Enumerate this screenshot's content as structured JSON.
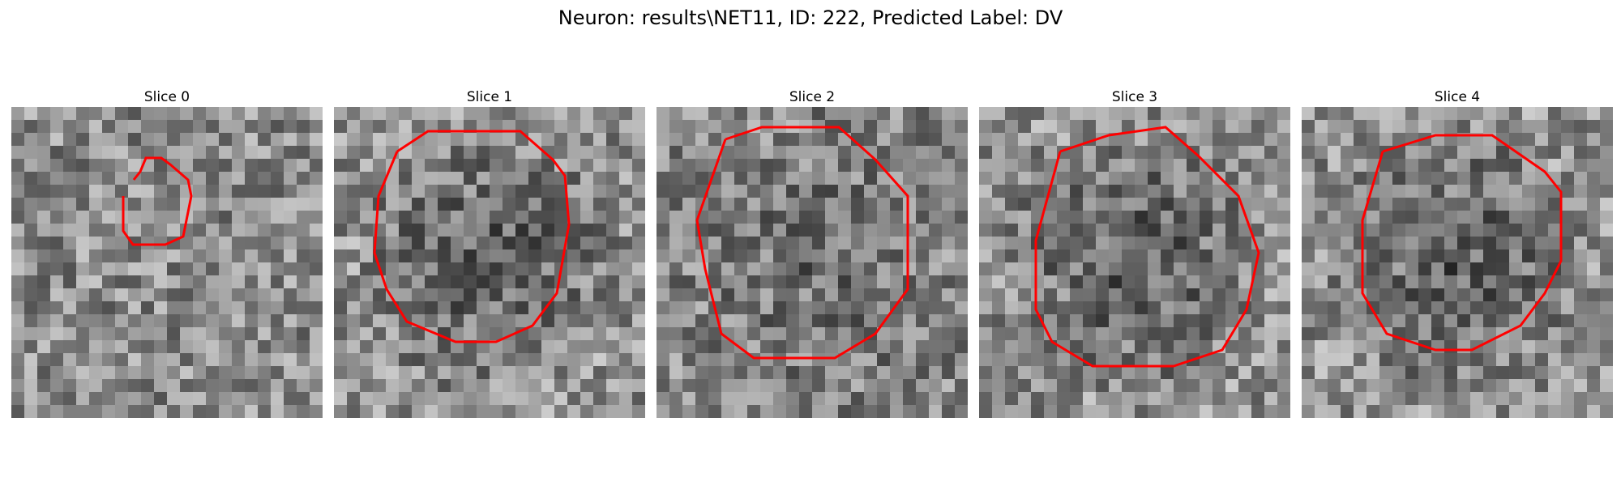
{
  "figure": {
    "title": "Neuron: results\\NET11, ID: 222, Predicted Label: DV"
  },
  "panels": [
    {
      "title": "Slice 0",
      "roi_color": "#ff0000",
      "tone": "mixed"
    },
    {
      "title": "Slice 1",
      "roi_color": "#ff0000",
      "tone": "dark-center"
    },
    {
      "title": "Slice 2",
      "roi_color": "#ff0000",
      "tone": "mid"
    },
    {
      "title": "Slice 3",
      "roi_color": "#ff0000",
      "tone": "dark-center"
    },
    {
      "title": "Slice 4",
      "roi_color": "#ff0000",
      "tone": "dark-center"
    }
  ],
  "colormap": "gray"
}
